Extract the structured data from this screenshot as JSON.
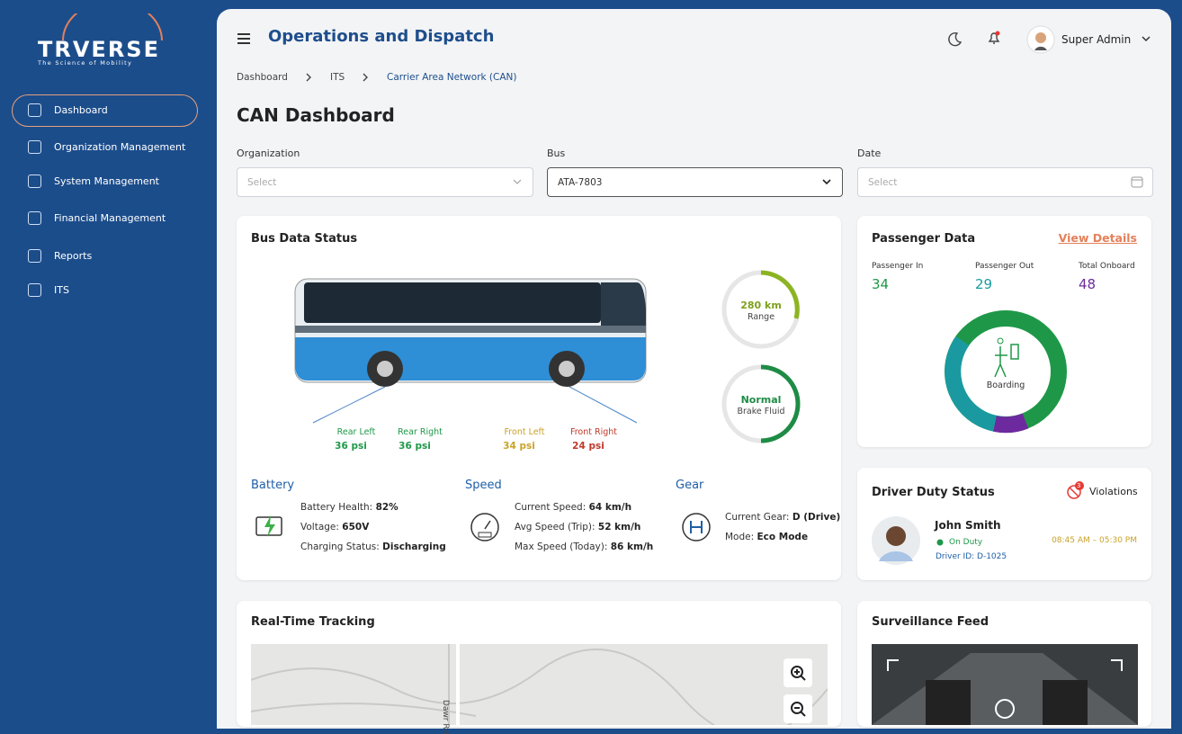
{
  "sidebar": {
    "logo": "TRVERSE",
    "tagline": "The Science of Mobility",
    "menu": [
      "Dashboard",
      "Organization Management",
      "System Management",
      "Financial Management",
      "Reports",
      "ITS"
    ]
  },
  "header": {
    "title": "Operations and Dispatch",
    "user": "Super Admin"
  },
  "breadcrumb": [
    "Dashboard",
    "ITS",
    "Carrier Area Network (CAN)"
  ],
  "page_title": "CAN Dashboard",
  "filters": [
    {
      "label": "Organization",
      "value": "Select"
    },
    {
      "label": "Bus",
      "value": "ATA-7803"
    },
    {
      "label": "Date",
      "value": "Select"
    }
  ],
  "bus_data": {
    "title": "Bus Data Status",
    "tires": [
      {
        "label": "Rear Left",
        "value": "36 psi"
      },
      {
        "label": "Rear Right",
        "value": "36 psi"
      },
      {
        "label": "Front Left",
        "value": "34 psi"
      },
      {
        "label": "Front Right",
        "value": "24 psi"
      }
    ],
    "range": {
      "value": "280 km",
      "label": "Range"
    },
    "brake": {
      "value": "Normal",
      "label": "Brake Fluid"
    },
    "battery": {
      "title": "Battery",
      "rows": [
        {
          "label": "Battery Health:",
          "value": "82%"
        },
        {
          "label": "Voltage:",
          "value": "650V"
        },
        {
          "label": "Charging Status:",
          "value": "Discharging"
        }
      ]
    },
    "speed": {
      "title": "Speed",
      "rows": [
        {
          "label": "Current Speed:",
          "value": "64 km/h"
        },
        {
          "label": "Avg Speed (Trip):",
          "value": "52 km/h"
        },
        {
          "label": "Max Speed (Today):",
          "value": "86 km/h"
        }
      ]
    },
    "gear": {
      "title": "Gear",
      "rows": [
        {
          "label": "Current Gear:",
          "value": "D (Drive)"
        },
        {
          "label": "Mode:",
          "value": "Eco Mode"
        }
      ]
    }
  },
  "passenger": {
    "title": "Passenger Data",
    "link": "View Details",
    "stats": [
      {
        "label": "Passenger In",
        "value": 34
      },
      {
        "label": "Passenger Out",
        "value": 29
      },
      {
        "label": "Total Onboard",
        "value": 48
      }
    ],
    "center_label": "Boarding"
  },
  "driver": {
    "title": "Driver Duty Status",
    "violations_count": 3,
    "violations_label": "Violations",
    "name": "John Smith",
    "status": "On Duty",
    "shift": "08:45 AM – 05:30 PM",
    "driver_id": "Driver ID: D-1025"
  },
  "tracking": {
    "title": "Real-Time Tracking",
    "road": "Dawr Rd"
  },
  "surveillance": {
    "title": "Surveillance Feed"
  }
}
